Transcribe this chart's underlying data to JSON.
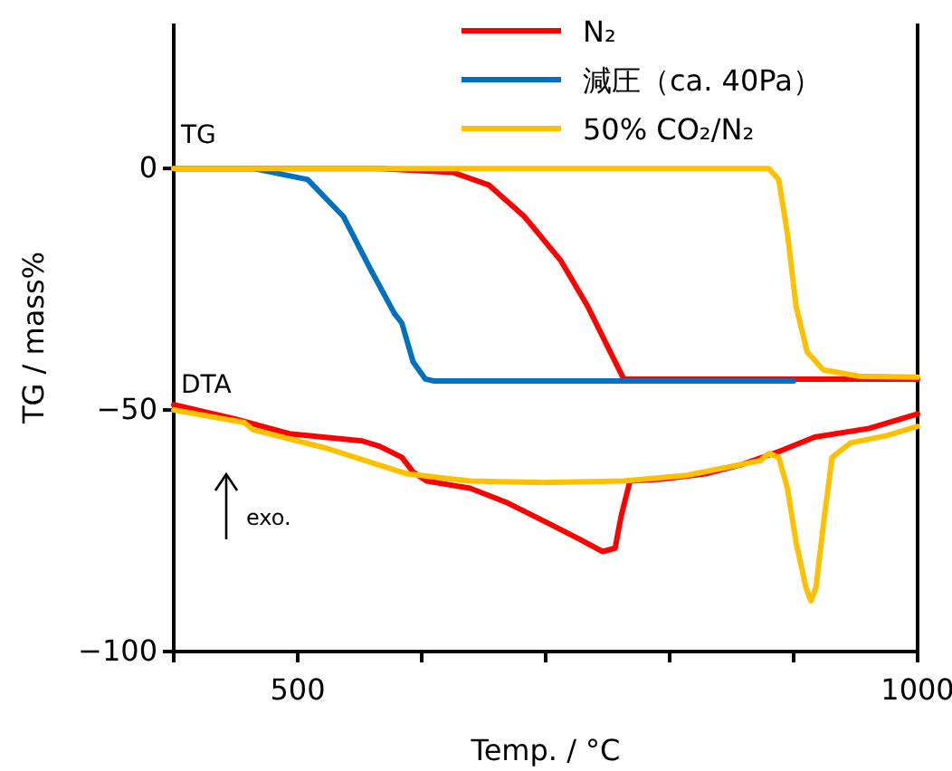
{
  "chart_data": {
    "type": "line",
    "xlabel": "Temp. / °C",
    "ylabel": "TG / mass%",
    "xlim": [
      400,
      1000
    ],
    "ylim": [
      -100,
      30
    ],
    "xticks": [
      {
        "value": 400,
        "label": null
      },
      500,
      {
        "value": 600,
        "label": null
      },
      {
        "value": 700,
        "label": null
      },
      {
        "value": 800,
        "label": null
      },
      {
        "value": 900,
        "label": null
      },
      1000
    ],
    "yticks": [
      -100,
      -50,
      0
    ],
    "grid": false,
    "legend": "top right",
    "marker": "none",
    "line_style": "solid",
    "annotations": [
      "TG",
      "DTA",
      "exo."
    ],
    "series": [
      {
        "name": "N₂",
        "color": "#ff0000",
        "x": [
          400,
          566,
          625,
          654,
          683,
          712,
          734,
          756,
          763,
          1000
        ],
        "values": [
          0,
          0,
          -0.8,
          -3.4,
          -10,
          -19,
          -28.6,
          -40,
          -43.6,
          -43.6
        ]
      },
      {
        "name": "減圧（ca. 40Pa）",
        "color": "#0070c0",
        "x": [
          400,
          464,
          508,
          537,
          559,
          578,
          584,
          593,
          603,
          610,
          900
        ],
        "values": [
          0,
          0,
          -2.3,
          -10,
          -21,
          -30,
          -32,
          -40,
          -43.6,
          -44,
          -44
        ]
      },
      {
        "name": "50% CO₂/N₂",
        "color": "#ffc000",
        "x": [
          400,
          880,
          888,
          895,
          902,
          911,
          924,
          953,
          1000
        ],
        "values": [
          0,
          0,
          -2.3,
          -13.5,
          -28.6,
          -38,
          -41.7,
          -43,
          -43.2
        ]
      },
      {
        "color": "#ff0000",
        "x": [
          400,
          450,
          493,
          552,
          566,
          584,
          593,
          604,
          639,
          669,
          698,
          727,
          746,
          756,
          761,
          768,
          793,
          829,
          858,
          888,
          917,
          961,
          1000
        ],
        "values": [
          -48.9,
          -51.9,
          -54.9,
          -56.4,
          -57.5,
          -59.8,
          -62.8,
          -64.7,
          -66.2,
          -69.2,
          -72.9,
          -76.7,
          -79.3,
          -78.6,
          -71.8,
          -64.7,
          -64.3,
          -63.2,
          -61.3,
          -58.6,
          -55.6,
          -53.8,
          -50.8
        ]
      },
      {
        "color": "#ffc000",
        "x": [
          400,
          457,
          464,
          523,
          588,
          639,
          698,
          763,
          814,
          873,
          880,
          888,
          895,
          902,
          910,
          914,
          918,
          924,
          931,
          946,
          975,
          1000
        ],
        "values": [
          -50,
          -52.6,
          -54.1,
          -57.9,
          -63.2,
          -64.7,
          -65,
          -64.7,
          -63.5,
          -60.5,
          -59,
          -59.8,
          -66.2,
          -77.4,
          -86.8,
          -89.5,
          -86.8,
          -73.7,
          -59.8,
          -56.8,
          -55.3,
          -53.4
        ]
      }
    ]
  }
}
